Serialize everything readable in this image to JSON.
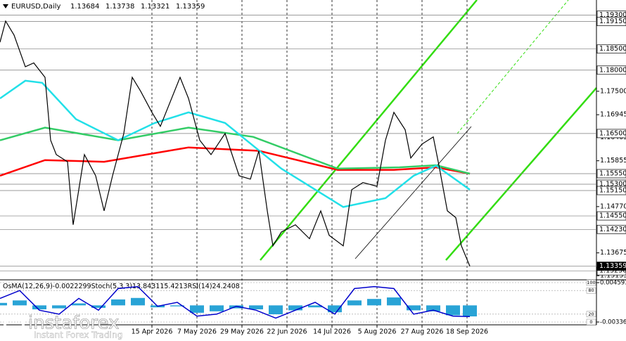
{
  "chart_data": [
    {
      "type": "line",
      "title": "EURUSD,Daily",
      "ohlc": [
        1.13684,
        1.13738,
        1.13321,
        1.13359
      ],
      "x": [
        0,
        2,
        5,
        9,
        12,
        16,
        18,
        20,
        24,
        26,
        30,
        34,
        37,
        40,
        44,
        47,
        50,
        54,
        57,
        64,
        67,
        71,
        75,
        80,
        85,
        89,
        92,
        95,
        97,
        100,
        105,
        110,
        114,
        117,
        122,
        125,
        129,
        134,
        137,
        140,
        144,
        146,
        150,
        154,
        156,
        159,
        162,
        164,
        167
      ],
      "values": [
        1.1866,
        1.1916,
        1.1883,
        1.1808,
        1.1817,
        1.1783,
        1.1634,
        1.16,
        1.1583,
        1.1434,
        1.16,
        1.155,
        1.1467,
        1.155,
        1.165,
        1.1783,
        1.175,
        1.17,
        1.1667,
        1.1783,
        1.1733,
        1.1634,
        1.16,
        1.165,
        1.155,
        1.1542,
        1.1609,
        1.1467,
        1.1384,
        1.1417,
        1.1434,
        1.1401,
        1.1467,
        1.1409,
        1.1384,
        1.1517,
        1.1534,
        1.1525,
        1.1634,
        1.17,
        1.1659,
        1.1592,
        1.1625,
        1.1642,
        1.1575,
        1.1467,
        1.1451,
        1.1384,
        1.13359
      ],
      "color": "#000000",
      "averages": [
        {
          "color": "#ff0000",
          "x": [
            0,
            16,
            37,
            67,
            92,
            120,
            140,
            155,
            167
          ],
          "values": [
            1.155,
            1.1587,
            1.1583,
            1.1617,
            1.1609,
            1.1564,
            1.1564,
            1.157,
            1.1555
          ]
        },
        {
          "color": "#33cc66",
          "x": [
            0,
            16,
            42,
            67,
            90,
            120,
            142,
            155,
            167
          ],
          "values": [
            1.1634,
            1.1664,
            1.1634,
            1.1664,
            1.1642,
            1.1567,
            1.157,
            1.1575,
            1.1555
          ]
        },
        {
          "color": "#22e0e8",
          "x": [
            0,
            9,
            15,
            27,
            42,
            55,
            67,
            80,
            100,
            122,
            137,
            147,
            155,
            167
          ],
          "values": [
            1.1733,
            1.1775,
            1.177,
            1.1684,
            1.1634,
            1.1675,
            1.17,
            1.1675,
            1.1567,
            1.1476,
            1.1497,
            1.155,
            1.1574,
            1.1517
          ]
        }
      ],
      "xlim": [
        0,
        212
      ],
      "xticks": [
        {
          "value": 54,
          "label": "15 Apr 2026"
        },
        {
          "value": 70,
          "label": "7 May 2026"
        },
        {
          "value": 86,
          "label": "29 May 2026"
        },
        {
          "value": 102,
          "label": "22 Jun 2026"
        },
        {
          "value": 118,
          "label": "14 Jul 2026"
        },
        {
          "value": 134,
          "label": "5 Aug 2026"
        },
        {
          "value": 150,
          "label": "27 Aug 2026"
        },
        {
          "value": 166,
          "label": "18 Sep 2026"
        }
      ],
      "ylim": [
        1.1307,
        1.1966
      ],
      "yticks": [
        {
          "value": 1.175,
          "label": "1.17500"
        },
        {
          "value": 1.16945,
          "label": "1.16945"
        },
        {
          "value": 1.16405,
          "label": "1.16405"
        },
        {
          "value": 1.15855,
          "label": "1.15855"
        },
        {
          "value": 1.1477,
          "label": "1.14770"
        },
        {
          "value": 1.13675,
          "label": "1.13675"
        },
        {
          "value": 1.13135,
          "label": "1.13135"
        }
      ],
      "levels": [
        {
          "value": 1.193,
          "label": "1.19300"
        },
        {
          "value": 1.1915,
          "label": "1.19150"
        },
        {
          "value": 1.185,
          "label": "1.18500"
        },
        {
          "value": 1.18,
          "label": "1.18000"
        },
        {
          "value": 1.165,
          "label": "1.16500"
        },
        {
          "value": 1.1555,
          "label": "1.15550"
        },
        {
          "value": 1.153,
          "label": "1.15300"
        },
        {
          "value": 1.1515,
          "label": "1.15150"
        },
        {
          "value": 1.1455,
          "label": "1.14550"
        },
        {
          "value": 1.1423,
          "label": "1.14230"
        },
        {
          "value": 1.1325,
          "label": "1.13250"
        },
        {
          "value": 1.13359,
          "label": "1.13359"
        }
      ],
      "grid": true
    },
    {
      "type": "bar",
      "indicators": [
        "OsMA(12,26,9)",
        "Stoch(5,3,3)",
        "RSI(14)"
      ],
      "readings": [
        -0.0022299,
        13.8431,
        15.4213,
        24.2408
      ],
      "x": [
        0,
        7,
        14,
        21,
        28,
        35,
        42,
        49,
        56,
        63,
        70,
        77,
        84,
        91,
        98,
        105,
        112,
        119,
        126,
        133,
        140,
        147,
        154,
        161,
        167
      ],
      "values": [
        0.0005,
        0.001,
        -0.0008,
        -0.0006,
        0.0004,
        -0.0005,
        0.0012,
        0.0015,
        -0.0004,
        -0.0002,
        -0.0015,
        -0.0012,
        -0.0006,
        -0.0008,
        -0.0018,
        -0.001,
        -0.0004,
        -0.0014,
        0.001,
        0.0013,
        0.0016,
        -0.001,
        -0.0012,
        -0.002,
        -0.0022299
      ],
      "color": "#29a3d6",
      "series": [
        {
          "color": "#0000cc",
          "axis": "y2",
          "values": [
            60,
            80,
            30,
            20,
            60,
            30,
            85,
            90,
            40,
            50,
            15,
            20,
            40,
            30,
            10,
            30,
            50,
            20,
            85,
            90,
            85,
            20,
            30,
            15,
            13.8431
          ]
        }
      ],
      "xlim": [
        0,
        212
      ],
      "ylim": [
        -0.003363,
        0.004593
      ],
      "yticks": [
        0.004593,
        -0.003363
      ],
      "y2lim": [
        0,
        100
      ],
      "y2ticks": [
        100,
        80,
        20,
        0
      ]
    }
  ],
  "logo": {
    "name": "instaforex",
    "tagline": "Instant Forex Trading"
  }
}
